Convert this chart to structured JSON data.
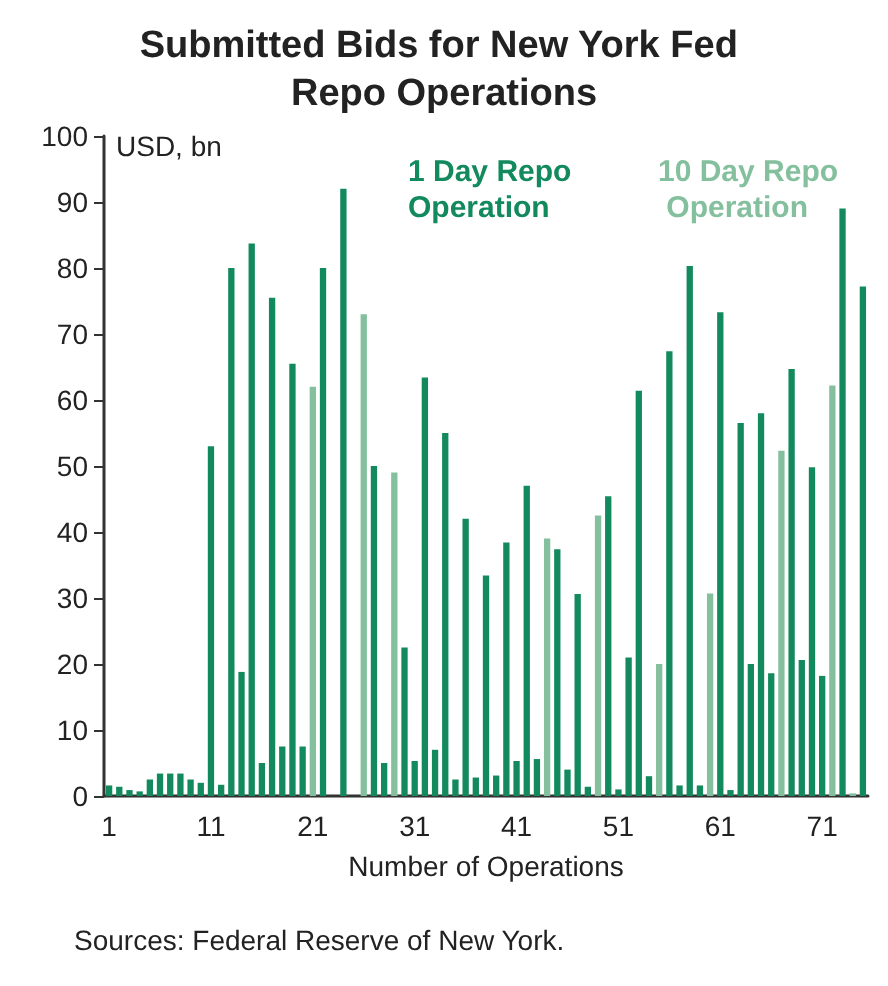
{
  "chart_data": {
    "type": "bar",
    "title": "Submitted Bids for New York Fed Repo Operations",
    "xlabel": "Number of Operations",
    "ylabel": "USD, bn",
    "annotations": [
      "Sources: Federal Reserve of New York."
    ],
    "categories": [
      "1",
      null,
      null,
      null,
      null,
      null,
      null,
      null,
      null,
      null,
      "11",
      null,
      null,
      null,
      null,
      null,
      null,
      null,
      null,
      null,
      "21",
      null,
      null,
      null,
      null,
      null,
      null,
      null,
      null,
      null,
      "31",
      null,
      null,
      null,
      null,
      null,
      null,
      null,
      null,
      null,
      "41",
      null,
      null,
      null,
      null,
      null,
      null,
      null,
      null,
      null,
      "51",
      null,
      null,
      null,
      null,
      null,
      null,
      null,
      null,
      null,
      "61",
      null,
      null,
      null,
      null,
      null,
      null,
      null,
      null,
      null,
      "71",
      null,
      null,
      null,
      null
    ],
    "series": [
      {
        "name": "1 Day Repo Operation",
        "color": "#138a5e",
        "values": [
          1.6,
          1.4,
          0.9,
          0.7,
          2.5,
          3.4,
          3.4,
          3.4,
          2.5,
          2,
          53,
          1.7,
          80,
          18.8,
          83.7,
          5,
          75.5,
          7.5,
          65.5,
          7.5,
          null,
          80,
          null,
          92,
          null,
          null,
          50,
          5,
          null,
          22.5,
          5.3,
          63.4,
          7,
          55,
          2.5,
          42,
          2.8,
          33.4,
          3.1,
          38.4,
          5.3,
          47,
          5.6,
          null,
          37.4,
          4,
          30.6,
          1.4,
          null,
          45.4,
          1,
          21,
          61.4,
          3,
          null,
          67.4,
          1.6,
          80.3,
          1.6,
          null,
          73.3,
          0.9,
          56.5,
          20,
          58,
          18.6,
          null,
          64.7,
          20.6,
          49.8,
          18.2,
          null,
          89,
          null,
          77.2
        ]
      },
      {
        "name": "10 Day Repo Operation",
        "color": "#84c09e",
        "values": [
          null,
          null,
          null,
          null,
          null,
          null,
          null,
          null,
          null,
          null,
          null,
          null,
          null,
          null,
          null,
          null,
          null,
          null,
          null,
          null,
          62,
          null,
          null,
          null,
          null,
          73,
          null,
          null,
          49,
          null,
          null,
          null,
          null,
          null,
          null,
          null,
          null,
          null,
          null,
          null,
          null,
          null,
          null,
          39,
          null,
          null,
          null,
          null,
          42.5,
          null,
          null,
          null,
          null,
          null,
          20,
          null,
          null,
          null,
          null,
          30.7,
          null,
          null,
          null,
          null,
          null,
          null,
          52.3,
          null,
          null,
          null,
          null,
          62.2,
          null,
          0.4,
          null
        ]
      }
    ],
    "ylim": [
      0,
      100
    ],
    "yticks": [
      0,
      10,
      20,
      30,
      40,
      50,
      60,
      70,
      80,
      90,
      100
    ],
    "grid": false,
    "legend": "top right"
  }
}
